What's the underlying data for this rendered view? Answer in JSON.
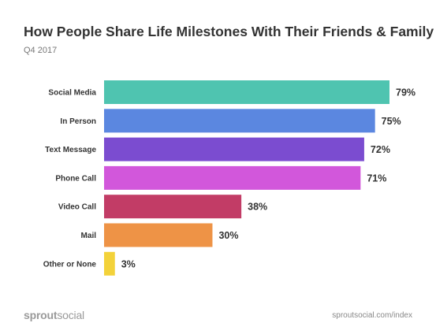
{
  "header": {
    "title": "How People Share Life Milestones With Their Friends & Family",
    "subtitle": "Q4 2017"
  },
  "footer": {
    "logo_bold": "sprout",
    "logo_light": "social",
    "url": "sproutsocial.com/index"
  },
  "chart_data": {
    "type": "bar",
    "orientation": "horizontal",
    "categories": [
      "Social Media",
      "In Person",
      "Text Message",
      "Phone Call",
      "Video Call",
      "Mail",
      "Other or None"
    ],
    "values": [
      79,
      75,
      72,
      71,
      38,
      30,
      3
    ],
    "value_labels": [
      "79%",
      "75%",
      "72%",
      "71%",
      "38%",
      "30%",
      "3%"
    ],
    "colors": [
      "#4fc4b0",
      "#5b87e0",
      "#7b4cd0",
      "#d257db",
      "#c23c66",
      "#ee9346",
      "#f3d23a"
    ],
    "xlim": [
      0,
      79
    ],
    "grid": false,
    "legend": "none"
  }
}
